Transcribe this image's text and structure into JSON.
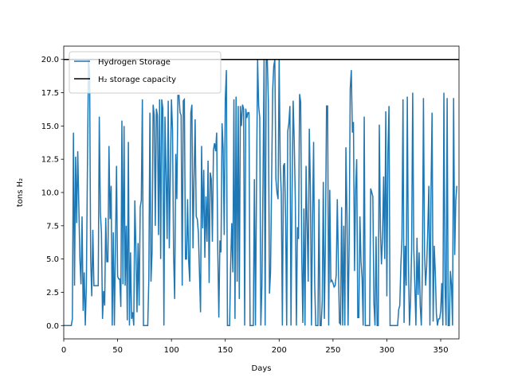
{
  "chart_data": {
    "type": "line",
    "xlabel": "Days",
    "ylabel": "tons H₂",
    "xlim": [
      0,
      367
    ],
    "ylim": [
      -1,
      21
    ],
    "xticks": [
      0,
      50,
      100,
      150,
      200,
      250,
      300,
      350
    ],
    "yticks": [
      {
        "value": 0,
        "label": "0.0"
      },
      2.5,
      {
        "value": 5,
        "label": "5.0"
      },
      7.5,
      {
        "value": 10,
        "label": "10.0"
      },
      12.5,
      {
        "value": 15,
        "label": "15.0"
      },
      17.5,
      {
        "value": 20,
        "label": "20.0"
      }
    ],
    "legend": "upper left",
    "series": [
      {
        "name": "Hydrogen Storage",
        "color": "#1f77b4",
        "x": [
          0,
          1,
          2,
          3,
          4,
          5,
          6,
          7,
          8,
          9,
          10,
          11,
          12,
          13,
          14,
          15,
          16,
          17,
          18,
          19,
          20,
          21,
          22,
          23,
          24,
          25,
          26,
          27,
          28,
          29,
          30,
          31,
          32,
          33,
          34,
          35,
          36,
          37,
          38,
          39,
          40,
          41,
          42,
          43,
          44,
          45,
          46,
          47,
          48,
          49,
          50,
          51,
          52,
          53,
          54,
          55,
          56,
          57,
          58,
          59,
          60,
          61,
          62,
          63,
          64,
          65,
          66,
          67,
          68,
          69,
          70,
          71,
          72,
          73,
          74,
          75,
          76,
          77,
          78,
          79,
          80,
          81,
          82,
          83,
          84,
          85,
          86,
          87,
          88,
          89,
          90,
          91,
          92,
          93,
          94,
          95,
          96,
          97,
          98,
          99,
          100,
          101,
          102,
          103,
          104,
          105,
          106,
          107,
          108,
          109,
          110,
          111,
          112,
          113,
          114,
          115,
          116,
          117,
          118,
          119,
          120,
          121,
          122,
          123,
          124,
          125,
          126,
          127,
          128,
          129,
          130,
          131,
          132,
          133,
          134,
          135,
          136,
          137,
          138,
          139,
          140,
          141,
          142,
          143,
          144,
          145,
          146,
          147,
          148,
          149,
          150,
          151,
          152,
          153,
          154,
          155,
          156,
          157,
          158,
          159,
          160,
          161,
          162,
          163,
          164,
          165,
          166,
          167,
          168,
          169,
          170,
          171,
          172,
          173,
          174,
          175,
          176,
          177,
          178,
          179,
          180,
          181,
          182,
          183,
          184,
          185,
          186,
          187,
          188,
          189,
          190,
          191,
          192,
          193,
          194,
          195,
          196,
          197,
          198,
          199,
          200,
          201,
          202,
          203,
          204,
          205,
          206,
          207,
          208,
          209,
          210,
          211,
          212,
          213,
          214,
          215,
          216,
          217,
          218,
          219,
          220,
          221,
          222,
          223,
          224,
          225,
          226,
          227,
          228,
          229,
          230,
          231,
          232,
          233,
          234,
          235,
          236,
          237,
          238,
          239,
          240,
          241,
          242,
          243,
          244,
          245,
          246,
          247,
          248,
          249,
          250,
          251,
          252,
          253,
          254,
          255,
          256,
          257,
          258,
          259,
          260,
          261,
          262,
          263,
          264,
          265,
          266,
          267,
          268,
          269,
          270,
          271,
          272,
          273,
          274,
          275,
          276,
          277,
          278,
          279,
          280,
          281,
          282,
          283,
          284,
          285,
          286,
          287,
          288,
          289,
          290,
          291,
          292,
          293,
          294,
          295,
          296,
          297,
          298,
          299,
          300,
          301,
          302,
          303,
          304,
          305,
          306,
          307,
          308,
          309,
          310,
          311,
          312,
          313,
          314,
          315,
          316,
          317,
          318,
          319,
          320,
          321,
          322,
          323,
          324,
          325,
          326,
          327,
          328,
          329,
          330,
          331,
          332,
          333,
          334,
          335,
          336,
          337,
          338,
          339,
          340,
          341,
          342,
          343,
          344,
          345,
          346,
          347,
          348,
          349,
          350,
          351,
          352,
          353,
          354,
          355,
          356,
          357,
          358,
          359,
          360,
          361,
          362,
          363,
          364,
          365
        ],
        "values": [
          0,
          0,
          0,
          0,
          0,
          0,
          0,
          0,
          0.5,
          14.5,
          3,
          12.7,
          7.7,
          13.1,
          9,
          5,
          3.1,
          8.2,
          1.1,
          4,
          0,
          3,
          12,
          20,
          19,
          5,
          2.2,
          7.2,
          3,
          3,
          3,
          3,
          3,
          15.7,
          8.5,
          7,
          0.5,
          2.6,
          1.5,
          8.1,
          4.8,
          4.8,
          13.5,
          8,
          10.5,
          0,
          7,
          0,
          6,
          12,
          3.7,
          3.5,
          3.5,
          1.4,
          15.4,
          3.1,
          15,
          3,
          7.5,
          0.4,
          13.8,
          0,
          5.5,
          0.5,
          1,
          0,
          9.4,
          5.8,
          1,
          6.2,
          1.5,
          8.9,
          9.4,
          17,
          0,
          0,
          0,
          0,
          0,
          3.5,
          16,
          3.3,
          5.5,
          16.6,
          15.8,
          7.5,
          16.3,
          15.8,
          6.8,
          17,
          5,
          17,
          16.3,
          0,
          15.7,
          11.5,
          6.5,
          16.9,
          5.8,
          11.6,
          17,
          14.7,
          5.3,
          2,
          12.9,
          9.5,
          17.3,
          17.3,
          16,
          15.8,
          3,
          16.9,
          17,
          5,
          5,
          9.5,
          4.8,
          3.3,
          16,
          16.6,
          5.8,
          11.1,
          15.5,
          8.2,
          8,
          7,
          4,
          1,
          13.5,
          7.3,
          11.7,
          5.1,
          9.7,
          6.3,
          12.4,
          3.2,
          11.5,
          11,
          6.3,
          13.2,
          13.7,
          13.1,
          14.5,
          5.8,
          0.6,
          6.4,
          5.5,
          15.2,
          13.3,
          6.8,
          17,
          19.2,
          0,
          0,
          0,
          4.6,
          7.7,
          4,
          17,
          0.5,
          17.2,
          3.3,
          16.5,
          2,
          16.5,
          15,
          16.6,
          16.3,
          0,
          16.3,
          15.6,
          16,
          16,
          0,
          0,
          0,
          0,
          11,
          0,
          10.8,
          20,
          16.5,
          15.6,
          0,
          3,
          10.7,
          20,
          0,
          20,
          20,
          16.8,
          2.4,
          4,
          10.8,
          17.7,
          19.5,
          20,
          11,
          10,
          9.5,
          20,
          12,
          9.9,
          0,
          12,
          12.2,
          8,
          0,
          14.6,
          15.2,
          16.5,
          0,
          9.9,
          16.9,
          13.9,
          9.5,
          0,
          7.4,
          6.5,
          17.4,
          16.8,
          5.3,
          0.2,
          8.8,
          0,
          12,
          7.6,
          3.3,
          14.8,
          10.5,
          0,
          8,
          13.8,
          3.1,
          0,
          0,
          0,
          9.5,
          0,
          0,
          1.8,
          10.8,
          0.5,
          6.5,
          16.5,
          16.5,
          0,
          10.2,
          3.3,
          3.4,
          3.2,
          2.9,
          3,
          3.8,
          9.5,
          4.7,
          0.2,
          0.1,
          8.9,
          0,
          7.5,
          0,
          13.4,
          8.3,
          0,
          6.2,
          17.8,
          19.2,
          14.5,
          15.3,
          4.1,
          10.2,
          12.5,
          0.6,
          0.6,
          8.2,
          4.8,
          3.6,
          0,
          15.7,
          0,
          0,
          0,
          0,
          0,
          10.3,
          10,
          9.7,
          1.7,
          0,
          6.7,
          0,
          0,
          15.1,
          7.3,
          4.6,
          6.6,
          11.2,
          5,
          16.1,
          2.2,
          13,
          16.5,
          0,
          0,
          0,
          0,
          0,
          0,
          0,
          0,
          1.2,
          1.5,
          4.5,
          6.5,
          17,
          0.2,
          6,
          3,
          17.2,
          5,
          0,
          1.8,
          5.7,
          17.5,
          5.8,
          3,
          0,
          6.6,
          2.3,
          5.5,
          1.5,
          0,
          4,
          17.1,
          5.5,
          3,
          4.5,
          7.2,
          10.5,
          0,
          10,
          16,
          0.3,
          6,
          4,
          0.9,
          0,
          0.5,
          0.5,
          1.1,
          3.2,
          0,
          17.5,
          3,
          0,
          17.1,
          0,
          0,
          4.1,
          3.1,
          0,
          17.1,
          5.3,
          9.4,
          10.5
        ]
      }
    ],
    "hlines": [
      {
        "name": "H₂ storage capacity",
        "value": 20,
        "color": "#000000"
      }
    ]
  }
}
